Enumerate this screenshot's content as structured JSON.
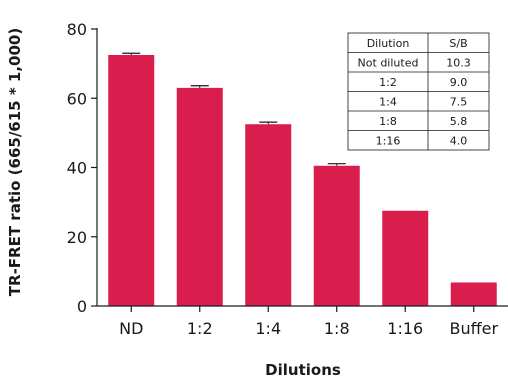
{
  "chart_data": {
    "type": "bar",
    "title": "",
    "xlabel": "Dilutions",
    "ylabel": "TR-FRET ratio (665/615 * 1,000)",
    "categories": [
      "ND",
      "1:2",
      "1:4",
      "1:8",
      "1:16",
      "Buffer"
    ],
    "values": [
      72.5,
      63,
      52.5,
      40.5,
      27.5,
      6.8
    ],
    "errors": [
      0.5,
      0.6,
      0.6,
      0.6,
      0,
      0
    ],
    "ylim": [
      0,
      80
    ],
    "yticks": [
      0,
      20,
      40,
      60,
      80
    ],
    "grid": false,
    "colors": {
      "bar": "#d91e4e",
      "axis": "#1a1a1a"
    },
    "inset_table": {
      "headers": [
        "Dilution",
        "S/B"
      ],
      "rows": [
        [
          "Not diluted",
          "10.3"
        ],
        [
          "1:2",
          "9.0"
        ],
        [
          "1:4",
          "7.5"
        ],
        [
          "1:8",
          "5.8"
        ],
        [
          "1:16",
          "4.0"
        ]
      ]
    }
  }
}
